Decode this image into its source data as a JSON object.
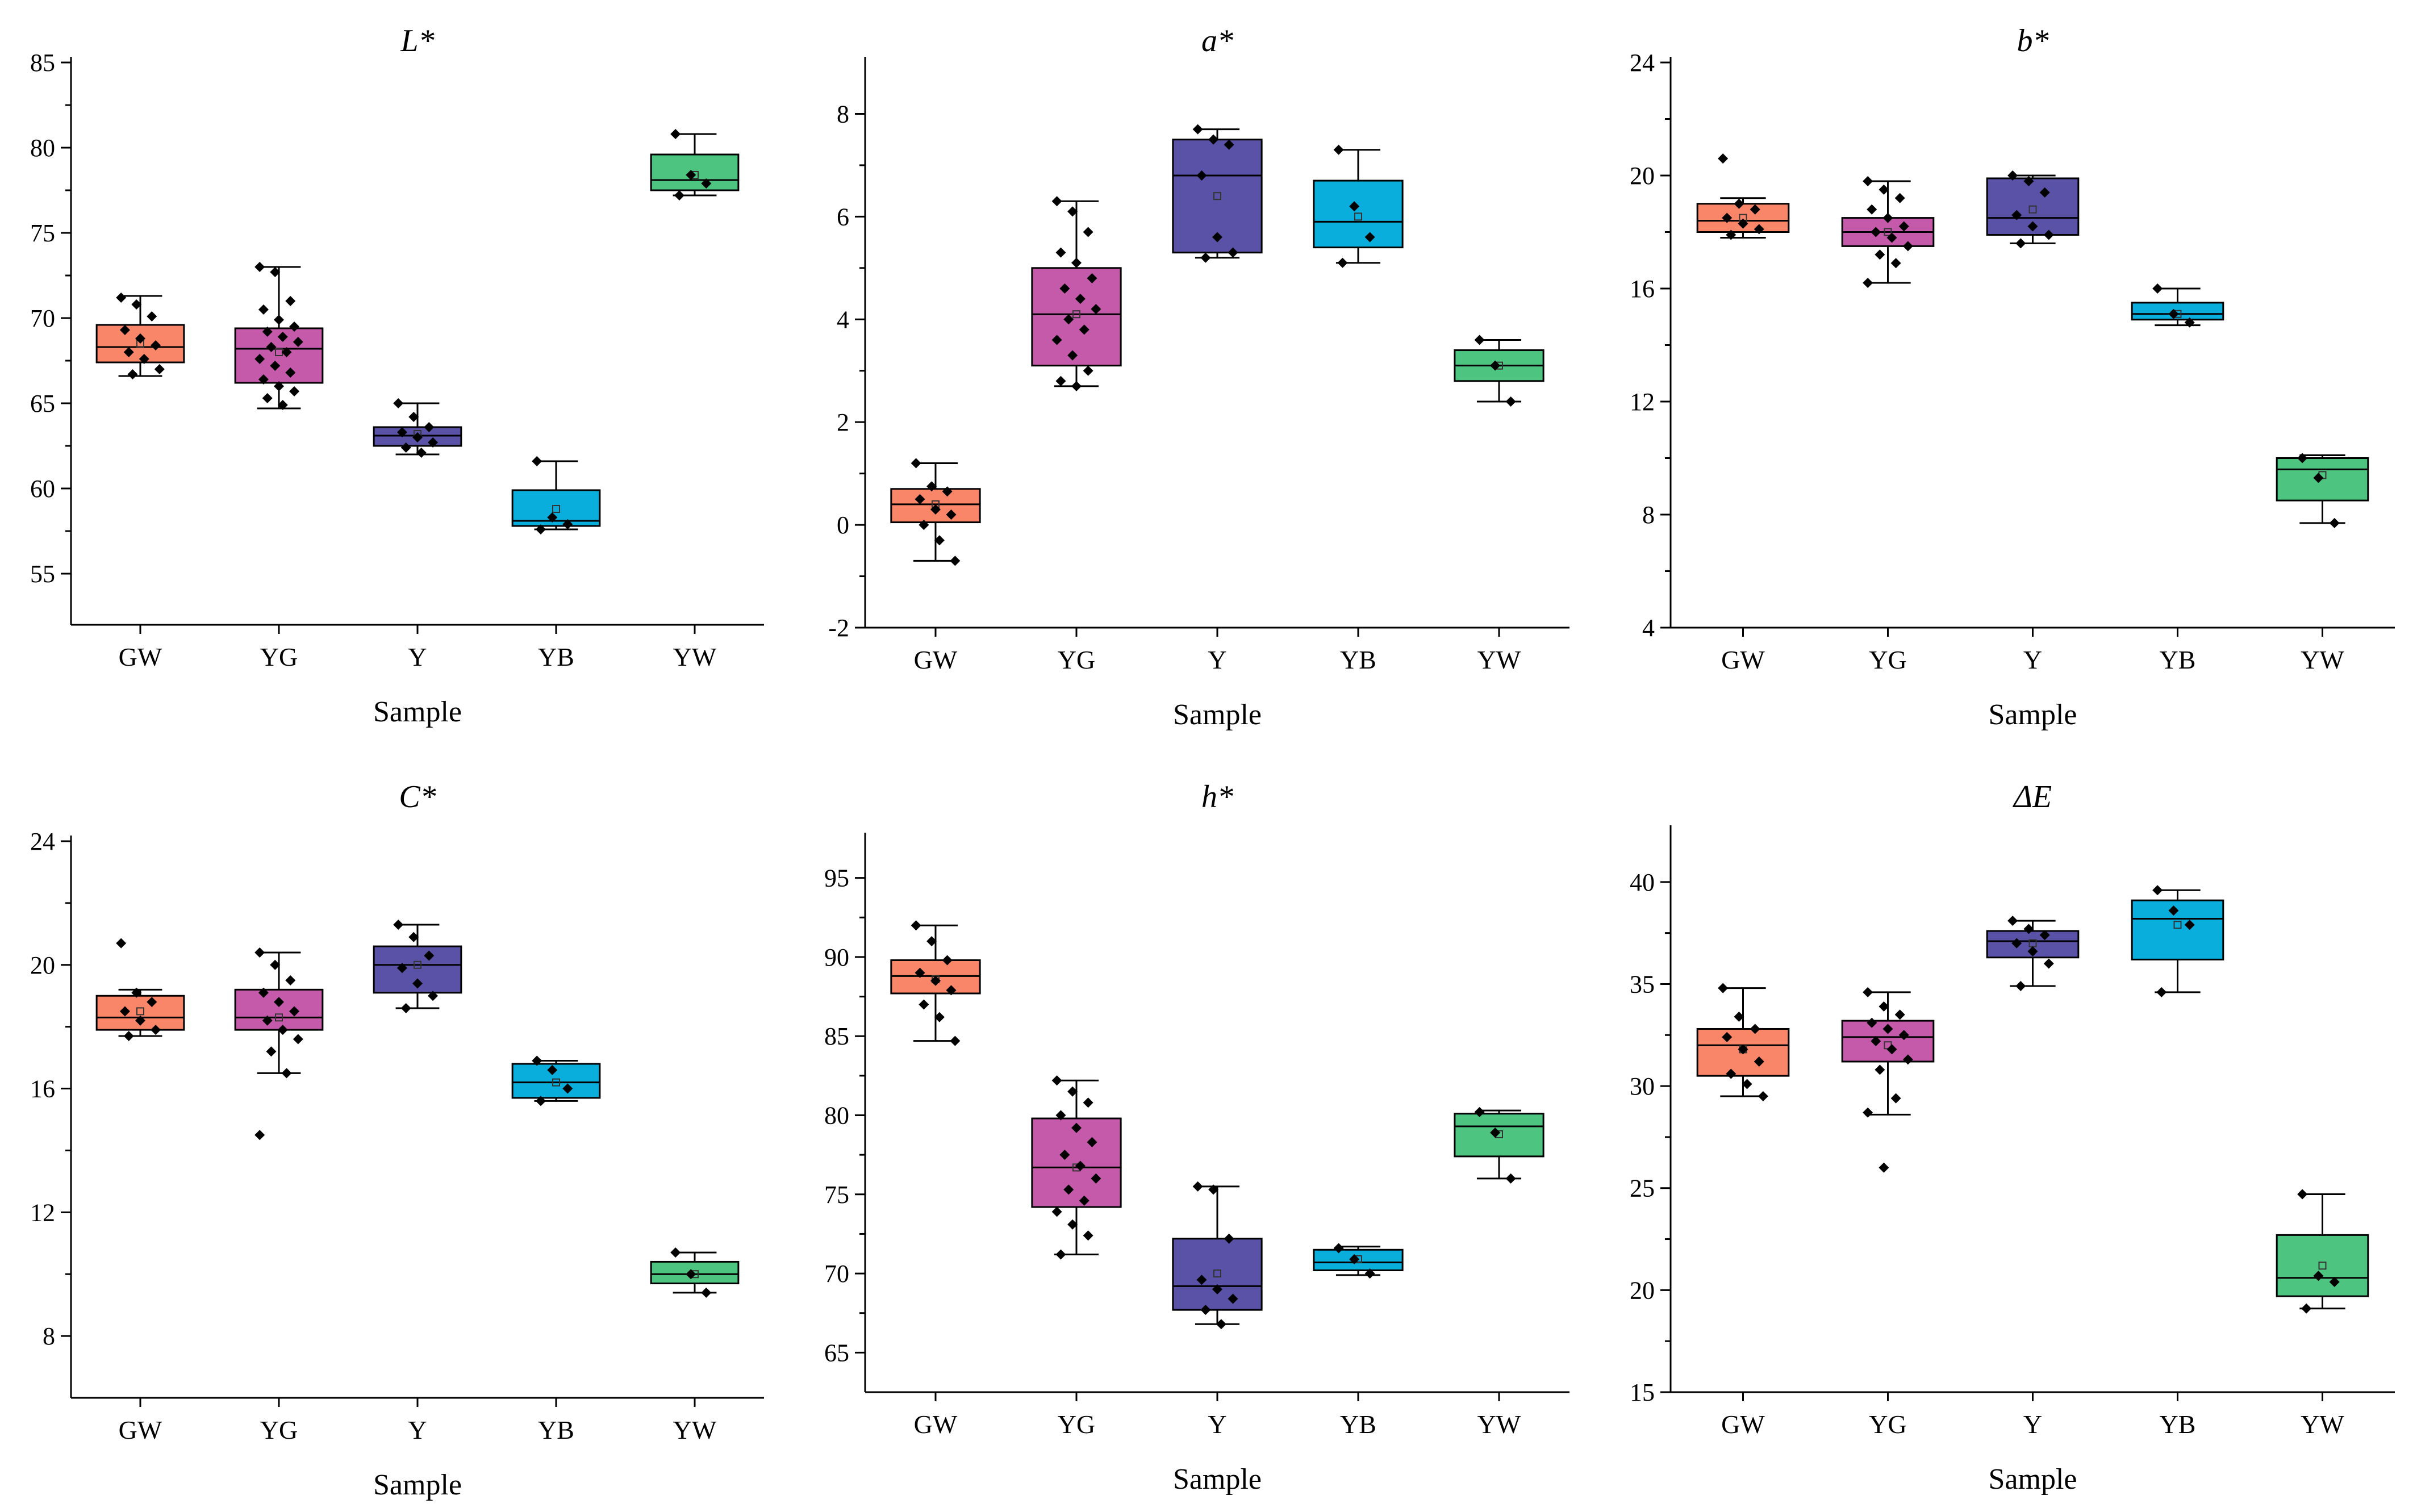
{
  "chart_data": [
    {
      "type": "box",
      "title": "L*",
      "xlabel": "Sample",
      "ylabel": "",
      "ylim": [
        52,
        85
      ],
      "yticks": [
        55,
        60,
        65,
        70,
        75,
        80,
        85
      ],
      "categories": [
        "GW",
        "YG",
        "Y",
        "YB",
        "YW"
      ],
      "colors": [
        "#FA8669",
        "#C55AAB",
        "#5A52A6",
        "#09AEDC",
        "#4DC581"
      ],
      "boxes": [
        {
          "min": 66.6,
          "q1": 67.4,
          "median": 68.3,
          "q3": 69.6,
          "max": 71.3,
          "mean": 68.5,
          "points": [
            71.2,
            70.8,
            70.1,
            69.3,
            68.8,
            68.4,
            68.0,
            67.6,
            67.0,
            66.7
          ]
        },
        {
          "min": 64.7,
          "q1": 66.2,
          "median": 68.2,
          "q3": 69.4,
          "max": 73.0,
          "mean": 68.0,
          "points": [
            73.0,
            72.7,
            71.0,
            70.5,
            69.9,
            69.5,
            69.2,
            68.9,
            68.6,
            68.3,
            68.0,
            67.6,
            67.2,
            66.8,
            66.4,
            66.0,
            65.7,
            65.3,
            64.9
          ]
        },
        {
          "min": 62.0,
          "q1": 62.5,
          "median": 63.1,
          "q3": 63.6,
          "max": 65.0,
          "mean": 63.2,
          "points": [
            65.0,
            64.2,
            63.6,
            63.3,
            63.0,
            62.7,
            62.4,
            62.1
          ]
        },
        {
          "min": 57.6,
          "q1": 57.8,
          "median": 58.1,
          "q3": 59.9,
          "max": 61.6,
          "mean": 58.8,
          "points": [
            61.6,
            58.3,
            57.9,
            57.6
          ]
        },
        {
          "min": 77.2,
          "q1": 77.5,
          "median": 78.1,
          "q3": 79.6,
          "max": 80.8,
          "mean": 78.4,
          "points": [
            80.8,
            78.4,
            77.9,
            77.2
          ]
        }
      ]
    },
    {
      "type": "box",
      "title": "a*",
      "xlabel": "Sample",
      "ylabel": "",
      "ylim": [
        -2,
        9
      ],
      "yticks": [
        -2,
        0,
        2,
        4,
        6,
        8
      ],
      "categories": [
        "GW",
        "YG",
        "Y",
        "YB",
        "YW"
      ],
      "colors": [
        "#FA8669",
        "#C55AAB",
        "#5A52A6",
        "#09AEDC",
        "#4DC581"
      ],
      "boxes": [
        {
          "min": -0.7,
          "q1": 0.05,
          "median": 0.4,
          "q3": 0.7,
          "max": 1.2,
          "mean": 0.4,
          "points": [
            1.2,
            0.75,
            0.65,
            0.5,
            0.3,
            0.2,
            0.0,
            -0.3,
            -0.7
          ]
        },
        {
          "min": 2.7,
          "q1": 3.1,
          "median": 4.1,
          "q3": 5.0,
          "max": 6.3,
          "mean": 4.1,
          "points": [
            6.3,
            6.1,
            5.7,
            5.3,
            5.1,
            4.8,
            4.6,
            4.4,
            4.2,
            4.0,
            3.8,
            3.6,
            3.3,
            3.0,
            2.8,
            2.7
          ]
        },
        {
          "min": 5.2,
          "q1": 5.3,
          "median": 6.8,
          "q3": 7.5,
          "max": 7.7,
          "mean": 6.4,
          "points": [
            7.7,
            7.5,
            7.4,
            6.8,
            5.6,
            5.3,
            5.2
          ]
        },
        {
          "min": 5.1,
          "q1": 5.4,
          "median": 5.9,
          "q3": 6.7,
          "max": 7.3,
          "mean": 6.0,
          "points": [
            7.3,
            6.2,
            5.6,
            5.1
          ]
        },
        {
          "min": 2.4,
          "q1": 2.8,
          "median": 3.1,
          "q3": 3.4,
          "max": 3.6,
          "mean": 3.1,
          "points": [
            3.6,
            3.1,
            2.4
          ]
        }
      ]
    },
    {
      "type": "box",
      "title": "b*",
      "xlabel": "Sample",
      "ylabel": "",
      "ylim": [
        4,
        24
      ],
      "yticks": [
        4,
        8,
        12,
        16,
        20,
        24
      ],
      "categories": [
        "GW",
        "YG",
        "Y",
        "YB",
        "YW"
      ],
      "colors": [
        "#FA8669",
        "#C55AAB",
        "#5A52A6",
        "#09AEDC",
        "#4DC581"
      ],
      "boxes": [
        {
          "min": 17.8,
          "q1": 18.0,
          "median": 18.4,
          "q3": 19.0,
          "max": 19.2,
          "mean": 18.5,
          "points": [
            20.6,
            19.0,
            18.8,
            18.5,
            18.3,
            18.1,
            17.9
          ]
        },
        {
          "min": 16.2,
          "q1": 17.5,
          "median": 18.0,
          "q3": 18.5,
          "max": 19.8,
          "mean": 18.0,
          "points": [
            19.8,
            19.5,
            19.2,
            18.8,
            18.5,
            18.2,
            18.0,
            17.8,
            17.5,
            17.2,
            16.9,
            16.2
          ]
        },
        {
          "min": 17.6,
          "q1": 17.9,
          "median": 18.5,
          "q3": 19.9,
          "max": 20.0,
          "mean": 18.8,
          "points": [
            20.0,
            19.8,
            19.4,
            18.6,
            18.2,
            17.9,
            17.6
          ]
        },
        {
          "min": 14.7,
          "q1": 14.9,
          "median": 15.1,
          "q3": 15.5,
          "max": 16.0,
          "mean": 15.1,
          "points": [
            16.0,
            15.1,
            14.8
          ]
        },
        {
          "min": 7.7,
          "q1": 8.5,
          "median": 9.6,
          "q3": 10.0,
          "max": 10.1,
          "mean": 9.4,
          "points": [
            10.0,
            9.3,
            7.7
          ]
        }
      ]
    },
    {
      "type": "box",
      "title": "C*",
      "xlabel": "Sample",
      "ylabel": "",
      "ylim": [
        6,
        24
      ],
      "yticks": [
        8,
        12,
        16,
        20,
        24
      ],
      "categories": [
        "GW",
        "YG",
        "Y",
        "YB",
        "YW"
      ],
      "colors": [
        "#FA8669",
        "#C55AAB",
        "#5A52A6",
        "#09AEDC",
        "#4DC581"
      ],
      "boxes": [
        {
          "min": 17.7,
          "q1": 17.9,
          "median": 18.3,
          "q3": 19.0,
          "max": 19.2,
          "mean": 18.5,
          "points": [
            20.7,
            19.1,
            18.8,
            18.5,
            18.2,
            17.9,
            17.7
          ]
        },
        {
          "min": 16.5,
          "q1": 17.9,
          "median": 18.3,
          "q3": 19.2,
          "max": 20.4,
          "mean": 18.3,
          "points": [
            20.4,
            20.0,
            19.5,
            19.1,
            18.8,
            18.5,
            18.2,
            17.9,
            17.6,
            17.2,
            16.5,
            14.5
          ]
        },
        {
          "min": 18.6,
          "q1": 19.1,
          "median": 20.0,
          "q3": 20.6,
          "max": 21.3,
          "mean": 20.0,
          "points": [
            21.3,
            20.9,
            20.3,
            19.9,
            19.4,
            19.0,
            18.6
          ]
        },
        {
          "min": 15.6,
          "q1": 15.7,
          "median": 16.2,
          "q3": 16.8,
          "max": 16.9,
          "mean": 16.2,
          "points": [
            16.9,
            16.6,
            16.0,
            15.6
          ]
        },
        {
          "min": 9.4,
          "q1": 9.7,
          "median": 10.0,
          "q3": 10.4,
          "max": 10.7,
          "mean": 10.0,
          "points": [
            10.7,
            10.0,
            9.4
          ]
        }
      ]
    },
    {
      "type": "box",
      "title": "h*",
      "xlabel": "Sample",
      "ylabel": "",
      "ylim": [
        62.5,
        97.5
      ],
      "yticks": [
        65,
        70,
        75,
        80,
        85,
        90,
        95
      ],
      "categories": [
        "GW",
        "YG",
        "Y",
        "YB",
        "YW"
      ],
      "colors": [
        "#FA8669",
        "#C55AAB",
        "#5A52A6",
        "#09AEDC",
        "#4DC581"
      ],
      "boxes": [
        {
          "min": 84.7,
          "q1": 87.7,
          "median": 88.8,
          "q3": 89.8,
          "max": 92.0,
          "mean": 88.6,
          "points": [
            92.0,
            91.0,
            89.8,
            89.0,
            88.5,
            87.9,
            87.0,
            86.2,
            84.7
          ]
        },
        {
          "min": 71.2,
          "q1": 74.2,
          "median": 76.7,
          "q3": 79.8,
          "max": 82.2,
          "mean": 76.7,
          "points": [
            82.2,
            81.5,
            80.8,
            80.0,
            79.2,
            78.3,
            77.5,
            76.8,
            76.0,
            75.3,
            74.6,
            73.9,
            73.1,
            72.4,
            71.2
          ]
        },
        {
          "min": 66.8,
          "q1": 67.7,
          "median": 69.2,
          "q3": 72.2,
          "max": 75.5,
          "mean": 70.0,
          "points": [
            75.5,
            75.3,
            72.2,
            69.6,
            69.0,
            68.4,
            67.7,
            66.8
          ]
        },
        {
          "min": 69.9,
          "q1": 70.2,
          "median": 70.7,
          "q3": 71.5,
          "max": 71.7,
          "mean": 70.9,
          "points": [
            71.6,
            70.9,
            70.0
          ]
        },
        {
          "min": 76.0,
          "q1": 77.4,
          "median": 79.3,
          "q3": 80.1,
          "max": 80.3,
          "mean": 78.8,
          "points": [
            80.2,
            78.9,
            76.0
          ]
        }
      ]
    },
    {
      "type": "box",
      "title": "ΔE",
      "xlabel": "Sample",
      "ylabel": "",
      "ylim": [
        15,
        42.5
      ],
      "yticks": [
        15,
        20,
        25,
        30,
        35,
        40
      ],
      "categories": [
        "GW",
        "YG",
        "Y",
        "YB",
        "YW"
      ],
      "colors": [
        "#FA8669",
        "#C55AAB",
        "#5A52A6",
        "#09AEDC",
        "#4DC581"
      ],
      "boxes": [
        {
          "min": 29.5,
          "q1": 30.5,
          "median": 32.0,
          "q3": 32.8,
          "max": 34.8,
          "mean": 31.8,
          "points": [
            34.8,
            33.4,
            32.8,
            32.4,
            31.8,
            31.2,
            30.6,
            30.1,
            29.5
          ]
        },
        {
          "min": 28.6,
          "q1": 31.2,
          "median": 32.4,
          "q3": 33.2,
          "max": 34.6,
          "mean": 32.0,
          "points": [
            34.6,
            33.9,
            33.5,
            33.1,
            32.8,
            32.5,
            32.2,
            31.8,
            31.3,
            30.8,
            29.4,
            28.7,
            26.0
          ]
        },
        {
          "min": 34.9,
          "q1": 36.3,
          "median": 37.1,
          "q3": 37.6,
          "max": 38.1,
          "mean": 37.0,
          "points": [
            38.1,
            37.7,
            37.4,
            37.0,
            36.6,
            36.0,
            34.9
          ]
        },
        {
          "min": 34.6,
          "q1": 36.2,
          "median": 38.2,
          "q3": 39.1,
          "max": 39.6,
          "mean": 37.9,
          "points": [
            39.6,
            38.6,
            37.9,
            34.6
          ]
        },
        {
          "min": 19.1,
          "q1": 19.7,
          "median": 20.6,
          "q3": 22.7,
          "max": 24.7,
          "mean": 21.2,
          "points": [
            24.7,
            20.7,
            20.4,
            19.1
          ]
        }
      ]
    }
  ]
}
